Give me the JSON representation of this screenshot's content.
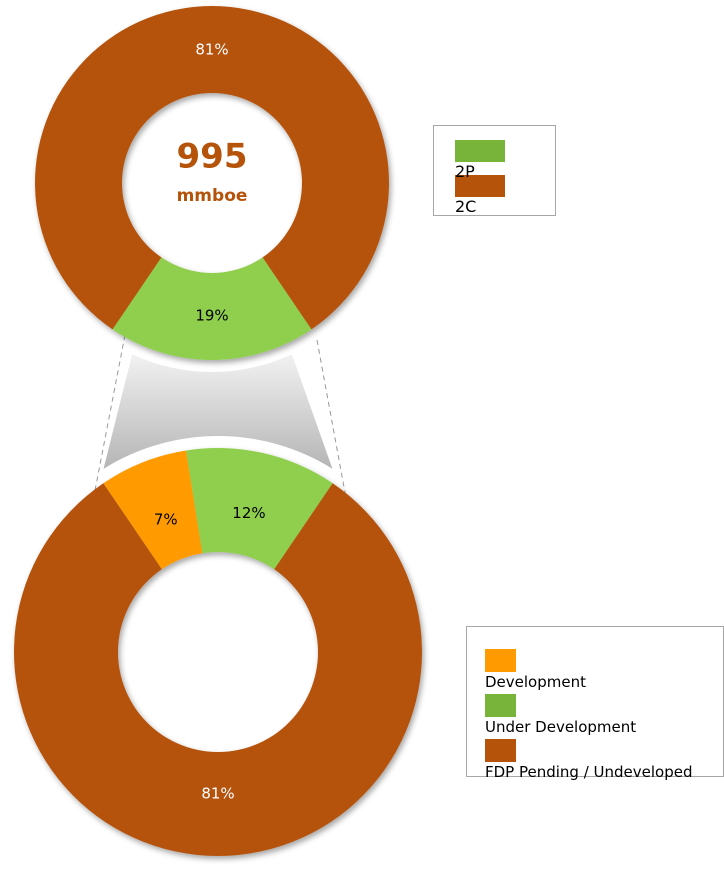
{
  "chart_data": [
    {
      "type": "donut",
      "categories": [
        "2P",
        "2C"
      ],
      "values": [
        19,
        81
      ],
      "value_labels": [
        "19%",
        "81%"
      ],
      "colors": [
        "#8fcf4e",
        "#b5530a"
      ],
      "legend_colors": [
        "#78b43a",
        "#b5530a"
      ],
      "start_angle": 145.8,
      "total": 995,
      "total_unit": "mmboe"
    },
    {
      "type": "donut",
      "categories": [
        "Development",
        "Under Development",
        "FDP Pending / Undeveloped"
      ],
      "values": [
        7,
        12,
        81
      ],
      "value_labels": [
        "7%",
        "12%",
        "81%"
      ],
      "colors": [
        "#ff9b00",
        "#8fcf4e",
        "#b5530a"
      ],
      "legend_colors": [
        "#ff9b00",
        "#78b43a",
        "#b5530a"
      ],
      "start_angle": -34.2
    }
  ]
}
